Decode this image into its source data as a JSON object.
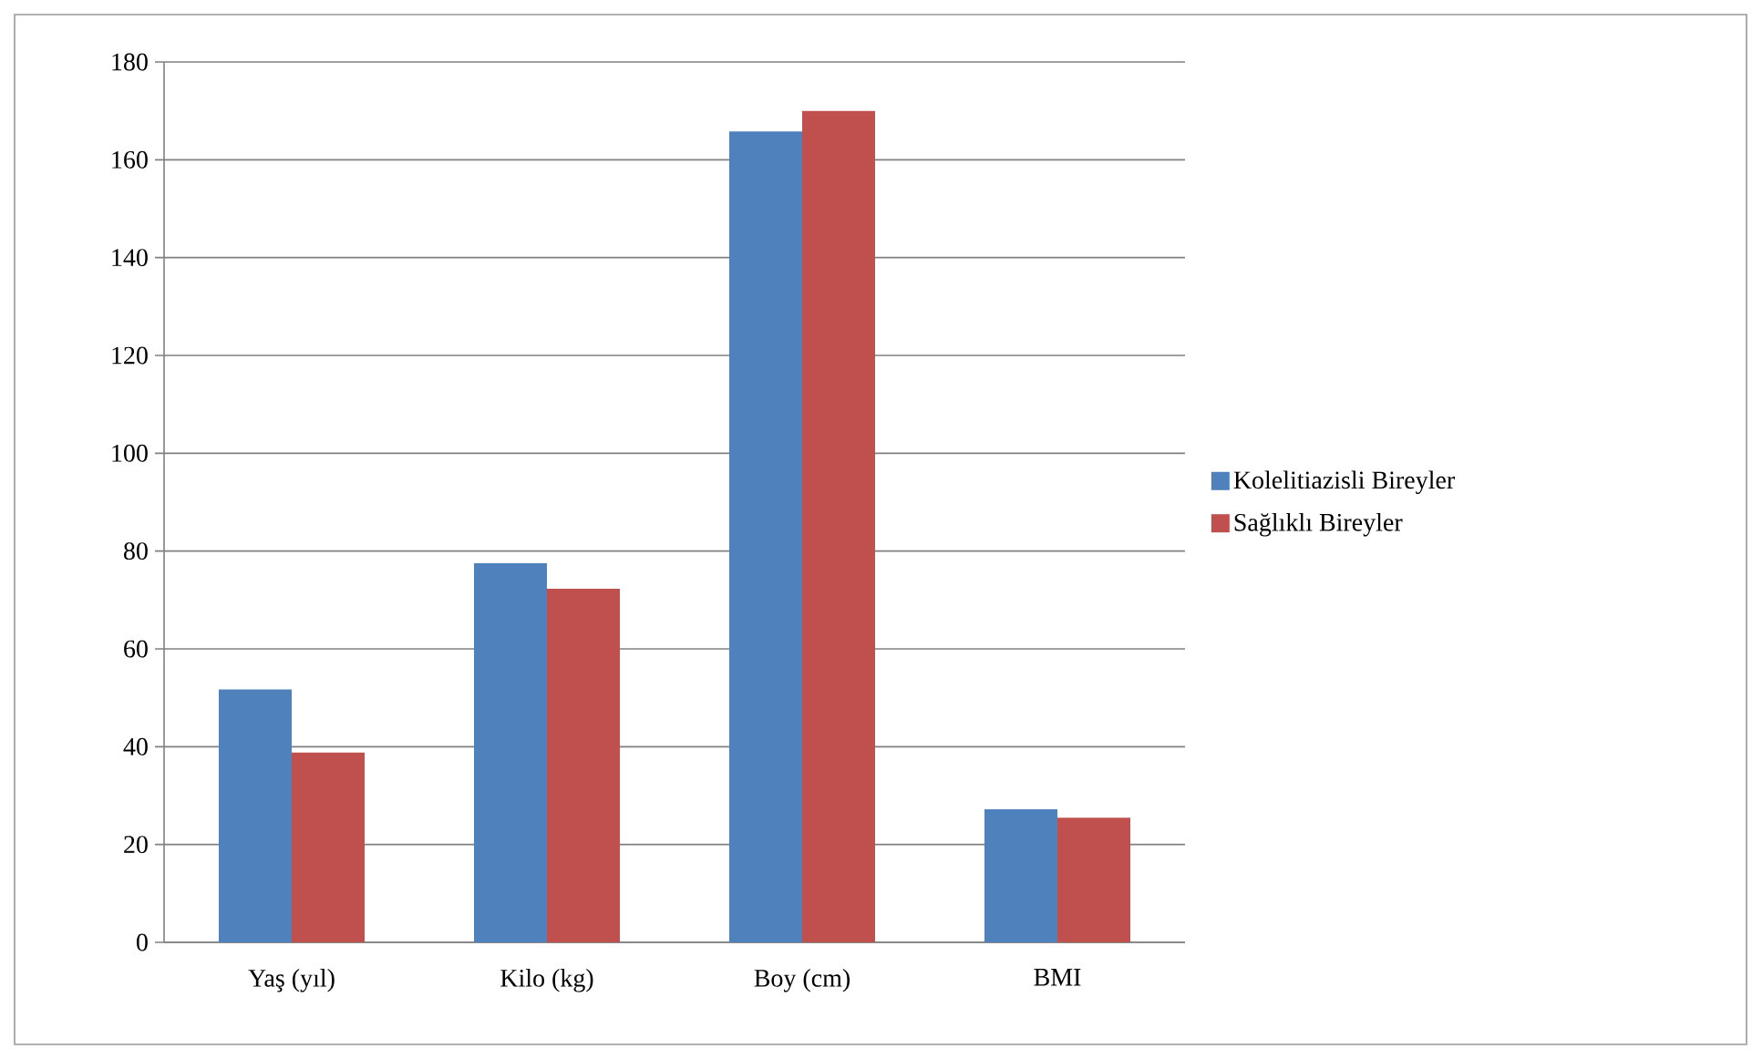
{
  "chart_data": {
    "type": "bar",
    "categories": [
      "Yaş (yıl)",
      "Kilo (kg)",
      "Boy (cm)",
      "BMI"
    ],
    "series": [
      {
        "name": "Kolelitiazisli Bireyler",
        "color": "#4f81bd",
        "values": [
          51.7,
          77.5,
          165.8,
          27.2
        ]
      },
      {
        "name": "Sağlıklı Bireyler",
        "color": "#c0504d",
        "values": [
          38.8,
          72.3,
          170,
          25.5
        ]
      }
    ],
    "ylim": [
      0,
      180
    ],
    "yticks": [
      0,
      20,
      40,
      60,
      80,
      100,
      120,
      140,
      160,
      180
    ],
    "grid": "y",
    "legend": "right"
  }
}
